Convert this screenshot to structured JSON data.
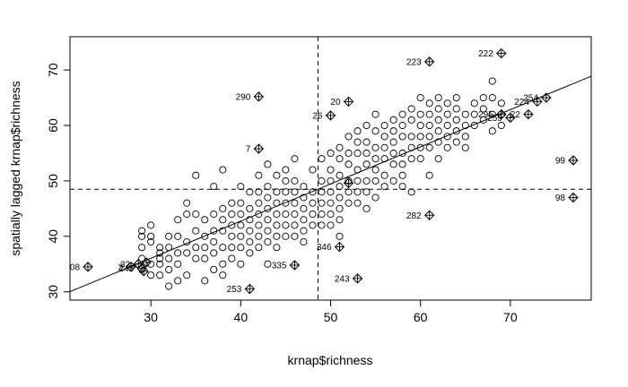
{
  "chart_data": {
    "type": "scatter",
    "title": "",
    "xlabel": "krnap$richness",
    "ylabel": "spatially lagged krnap$richness",
    "xlim": [
      21,
      79
    ],
    "ylim": [
      28.5,
      76
    ],
    "x_ticks": [
      30,
      40,
      50,
      60,
      70
    ],
    "y_ticks": [
      30,
      40,
      50,
      60,
      70
    ],
    "x_tick_labels": [
      "30",
      "40",
      "50",
      "60",
      "70"
    ],
    "y_tick_labels": [
      "30",
      "40",
      "50",
      "60",
      "70"
    ],
    "mean_x": 48.6,
    "mean_y": 48.5,
    "regression": {
      "slope": 0.67,
      "intercept": 15.95
    },
    "grid": false,
    "points": [
      [
        29,
        40
      ],
      [
        29,
        41
      ],
      [
        29,
        38
      ],
      [
        29,
        36
      ],
      [
        30,
        42
      ],
      [
        30,
        40
      ],
      [
        30,
        39
      ],
      [
        30,
        35
      ],
      [
        30,
        33
      ],
      [
        31,
        38
      ],
      [
        31,
        37
      ],
      [
        31,
        36
      ],
      [
        31,
        35
      ],
      [
        31,
        33
      ],
      [
        32,
        40
      ],
      [
        32,
        38
      ],
      [
        32,
        36
      ],
      [
        32,
        34
      ],
      [
        32,
        31
      ],
      [
        33,
        43
      ],
      [
        33,
        40
      ],
      [
        33,
        37
      ],
      [
        33,
        35
      ],
      [
        33,
        32
      ],
      [
        34,
        46
      ],
      [
        34,
        44
      ],
      [
        34,
        39
      ],
      [
        34,
        37
      ],
      [
        34,
        33
      ],
      [
        35,
        51
      ],
      [
        35,
        44
      ],
      [
        35,
        41
      ],
      [
        35,
        38
      ],
      [
        35,
        36
      ],
      [
        36,
        43
      ],
      [
        36,
        40
      ],
      [
        36,
        38
      ],
      [
        36,
        36
      ],
      [
        36,
        32
      ],
      [
        37,
        49
      ],
      [
        37,
        44
      ],
      [
        37,
        41
      ],
      [
        37,
        39
      ],
      [
        37,
        37
      ],
      [
        37,
        34
      ],
      [
        38,
        52
      ],
      [
        38,
        45
      ],
      [
        38,
        43
      ],
      [
        38,
        41
      ],
      [
        38,
        38
      ],
      [
        38,
        35
      ],
      [
        38,
        33
      ],
      [
        39,
        46
      ],
      [
        39,
        44
      ],
      [
        39,
        42
      ],
      [
        39,
        40
      ],
      [
        39,
        38
      ],
      [
        39,
        36
      ],
      [
        40,
        49
      ],
      [
        40,
        46
      ],
      [
        40,
        44
      ],
      [
        40,
        42
      ],
      [
        40,
        40
      ],
      [
        40,
        38
      ],
      [
        40,
        35
      ],
      [
        41,
        48
      ],
      [
        41,
        45
      ],
      [
        41,
        43
      ],
      [
        41,
        41
      ],
      [
        41,
        39
      ],
      [
        41,
        37
      ],
      [
        42,
        51
      ],
      [
        42,
        48
      ],
      [
        42,
        46
      ],
      [
        42,
        44
      ],
      [
        42,
        42
      ],
      [
        42,
        40
      ],
      [
        42,
        38
      ],
      [
        43,
        53
      ],
      [
        43,
        49
      ],
      [
        43,
        47
      ],
      [
        43,
        45
      ],
      [
        43,
        43
      ],
      [
        43,
        41
      ],
      [
        43,
        39
      ],
      [
        43,
        35
      ],
      [
        44,
        51
      ],
      [
        44,
        48
      ],
      [
        44,
        46
      ],
      [
        44,
        44
      ],
      [
        44,
        42
      ],
      [
        44,
        40
      ],
      [
        44,
        38
      ],
      [
        45,
        52
      ],
      [
        45,
        50
      ],
      [
        45,
        48
      ],
      [
        45,
        46
      ],
      [
        45,
        44
      ],
      [
        45,
        42
      ],
      [
        45,
        40
      ],
      [
        46,
        54
      ],
      [
        46,
        50
      ],
      [
        46,
        48
      ],
      [
        46,
        46
      ],
      [
        46,
        44
      ],
      [
        46,
        42
      ],
      [
        46,
        40
      ],
      [
        47,
        49
      ],
      [
        47,
        47
      ],
      [
        47,
        45
      ],
      [
        47,
        43
      ],
      [
        47,
        41
      ],
      [
        47,
        39
      ],
      [
        48,
        52
      ],
      [
        48,
        48
      ],
      [
        48,
        46
      ],
      [
        48,
        44
      ],
      [
        48,
        42
      ],
      [
        49,
        54
      ],
      [
        49,
        50
      ],
      [
        49,
        48
      ],
      [
        49,
        46
      ],
      [
        49,
        44
      ],
      [
        49,
        42
      ],
      [
        50,
        55
      ],
      [
        50,
        52
      ],
      [
        50,
        50
      ],
      [
        50,
        48
      ],
      [
        50,
        46
      ],
      [
        50,
        44
      ],
      [
        50,
        42
      ],
      [
        51,
        56
      ],
      [
        51,
        54
      ],
      [
        51,
        51
      ],
      [
        51,
        49
      ],
      [
        51,
        47
      ],
      [
        51,
        45
      ],
      [
        51,
        43
      ],
      [
        51,
        40
      ],
      [
        52,
        58
      ],
      [
        52,
        55
      ],
      [
        52,
        53
      ],
      [
        52,
        50
      ],
      [
        52,
        48
      ],
      [
        52,
        46
      ],
      [
        53,
        59
      ],
      [
        53,
        57
      ],
      [
        53,
        55
      ],
      [
        53,
        52
      ],
      [
        53,
        50
      ],
      [
        53,
        48
      ],
      [
        53,
        46
      ],
      [
        54,
        60
      ],
      [
        54,
        57
      ],
      [
        54,
        55
      ],
      [
        54,
        53
      ],
      [
        54,
        50
      ],
      [
        54,
        48
      ],
      [
        54,
        45
      ],
      [
        55,
        62
      ],
      [
        55,
        59
      ],
      [
        55,
        56
      ],
      [
        55,
        54
      ],
      [
        55,
        52
      ],
      [
        55,
        50
      ],
      [
        55,
        47
      ],
      [
        56,
        60
      ],
      [
        56,
        58
      ],
      [
        56,
        56
      ],
      [
        56,
        54
      ],
      [
        56,
        51
      ],
      [
        56,
        49
      ],
      [
        57,
        61
      ],
      [
        57,
        59
      ],
      [
        57,
        57
      ],
      [
        57,
        55
      ],
      [
        57,
        53
      ],
      [
        57,
        50
      ],
      [
        58,
        62
      ],
      [
        58,
        60
      ],
      [
        58,
        58
      ],
      [
        58,
        55
      ],
      [
        58,
        53
      ],
      [
        58,
        51
      ],
      [
        58,
        49
      ],
      [
        59,
        63
      ],
      [
        59,
        61
      ],
      [
        59,
        58
      ],
      [
        59,
        56
      ],
      [
        59,
        54
      ],
      [
        59,
        48
      ],
      [
        60,
        65
      ],
      [
        60,
        62
      ],
      [
        60,
        60
      ],
      [
        60,
        58
      ],
      [
        60,
        56
      ],
      [
        60,
        54
      ],
      [
        61,
        64
      ],
      [
        61,
        62
      ],
      [
        61,
        60
      ],
      [
        61,
        58
      ],
      [
        61,
        56
      ],
      [
        61,
        51
      ],
      [
        62,
        65
      ],
      [
        62,
        63
      ],
      [
        62,
        61
      ],
      [
        62,
        59
      ],
      [
        62,
        57
      ],
      [
        62,
        54
      ],
      [
        63,
        64
      ],
      [
        63,
        62
      ],
      [
        63,
        60
      ],
      [
        63,
        58
      ],
      [
        63,
        56
      ],
      [
        64,
        65
      ],
      [
        64,
        63
      ],
      [
        64,
        61
      ],
      [
        64,
        59
      ],
      [
        64,
        57
      ],
      [
        65,
        62
      ],
      [
        65,
        60
      ],
      [
        65,
        58
      ],
      [
        65,
        56
      ],
      [
        66,
        64
      ],
      [
        66,
        62
      ],
      [
        66,
        60
      ],
      [
        67,
        65
      ],
      [
        67,
        63
      ],
      [
        67,
        61
      ],
      [
        68,
        68
      ],
      [
        68,
        65
      ],
      [
        68,
        62
      ],
      [
        68,
        59
      ],
      [
        69,
        64
      ],
      [
        69,
        62
      ],
      [
        69,
        60
      ]
    ],
    "influential_points": [
      {
        "id": "08",
        "x": 23,
        "y": 34.5
      },
      {
        "id": "2",
        "x": 27.8,
        "y": 34.5
      },
      {
        "id": "32",
        "x": 28.6,
        "y": 35
      },
      {
        "id": "245",
        "x": 29,
        "y": 34.2
      },
      {
        "id": "",
        "x": 29.5,
        "y": 35.3
      },
      {
        "id": "",
        "x": 29.2,
        "y": 33.7
      },
      {
        "id": "290",
        "x": 42,
        "y": 65.2
      },
      {
        "id": "7",
        "x": 42,
        "y": 55.8
      },
      {
        "id": "253",
        "x": 41,
        "y": 30.5
      },
      {
        "id": "335",
        "x": 46,
        "y": 34.8
      },
      {
        "id": "20",
        "x": 52,
        "y": 64.3
      },
      {
        "id": "26",
        "x": 50,
        "y": 61.8
      },
      {
        "id": "",
        "x": 52,
        "y": 49.6
      },
      {
        "id": "346",
        "x": 51,
        "y": 38.1
      },
      {
        "id": "243",
        "x": 53,
        "y": 32.4
      },
      {
        "id": "282",
        "x": 61,
        "y": 43.8
      },
      {
        "id": "223",
        "x": 61,
        "y": 71.5
      },
      {
        "id": "222",
        "x": 69,
        "y": 73.0
      },
      {
        "id": "224",
        "x": 73,
        "y": 64.3
      },
      {
        "id": "254",
        "x": 74,
        "y": 65.0
      },
      {
        "id": "295",
        "x": 69,
        "y": 62.0
      },
      {
        "id": "259",
        "x": 70,
        "y": 61.4
      },
      {
        "id": "22",
        "x": 72,
        "y": 62.0
      },
      {
        "id": "99",
        "x": 77,
        "y": 53.7
      },
      {
        "id": "98",
        "x": 77,
        "y": 47.0
      }
    ]
  }
}
